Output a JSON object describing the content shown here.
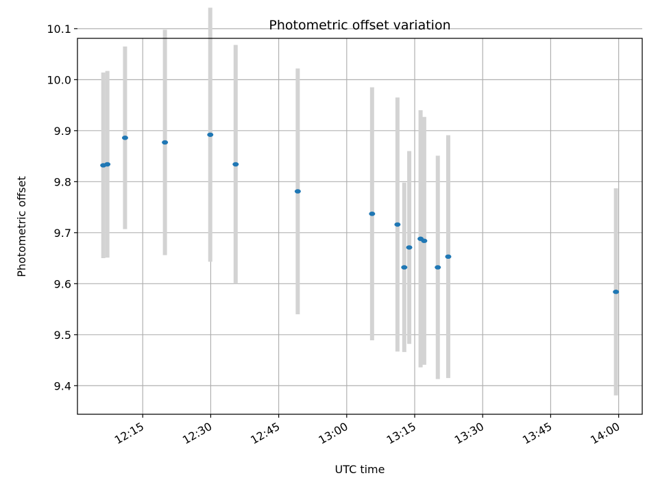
{
  "chart_data": {
    "type": "scatter",
    "title": "Photometric offset variation",
    "xlabel": "UTC time",
    "ylabel": "Photometric offset",
    "xlim": [
      "12:00:36",
      "14:05:12"
    ],
    "ylim": [
      9.344,
      10.081
    ],
    "xticks": [
      "12:15",
      "12:30",
      "12:45",
      "13:00",
      "13:15",
      "13:30",
      "13:45",
      "14:00"
    ],
    "yticks": [
      9.4,
      9.5,
      9.6,
      9.7,
      9.8,
      9.9,
      10.0,
      10.1
    ],
    "grid": true,
    "legend": "none",
    "colors": {
      "point": "#1f77b4",
      "errorbar": "#d3d3d3",
      "grid": "#b0b0b0"
    },
    "points": [
      {
        "x": "12:06:18",
        "y": 9.832,
        "err": 0.182
      },
      {
        "x": "12:07:12",
        "y": 9.834,
        "err": 0.183
      },
      {
        "x": "12:11:06",
        "y": 9.886,
        "err": 0.179
      },
      {
        "x": "12:19:54",
        "y": 9.877,
        "err": 0.221
      },
      {
        "x": "12:29:54",
        "y": 9.892,
        "err": 0.249
      },
      {
        "x": "12:35:30",
        "y": 9.834,
        "err": 0.234
      },
      {
        "x": "12:49:12",
        "y": 9.781,
        "err": 0.241
      },
      {
        "x": "13:05:36",
        "y": 9.737,
        "err": 0.248
      },
      {
        "x": "13:11:12",
        "y": 9.716,
        "err": 0.249
      },
      {
        "x": "13:12:42",
        "y": 9.632,
        "err": 0.166
      },
      {
        "x": "13:13:48",
        "y": 9.671,
        "err": 0.189
      },
      {
        "x": "13:16:18",
        "y": 9.688,
        "err": 0.252
      },
      {
        "x": "13:17:06",
        "y": 9.684,
        "err": 0.243
      },
      {
        "x": "13:20:06",
        "y": 9.632,
        "err": 0.219
      },
      {
        "x": "13:22:24",
        "y": 9.653,
        "err": 0.238
      },
      {
        "x": "13:59:24",
        "y": 9.584,
        "err": 0.203
      }
    ]
  }
}
